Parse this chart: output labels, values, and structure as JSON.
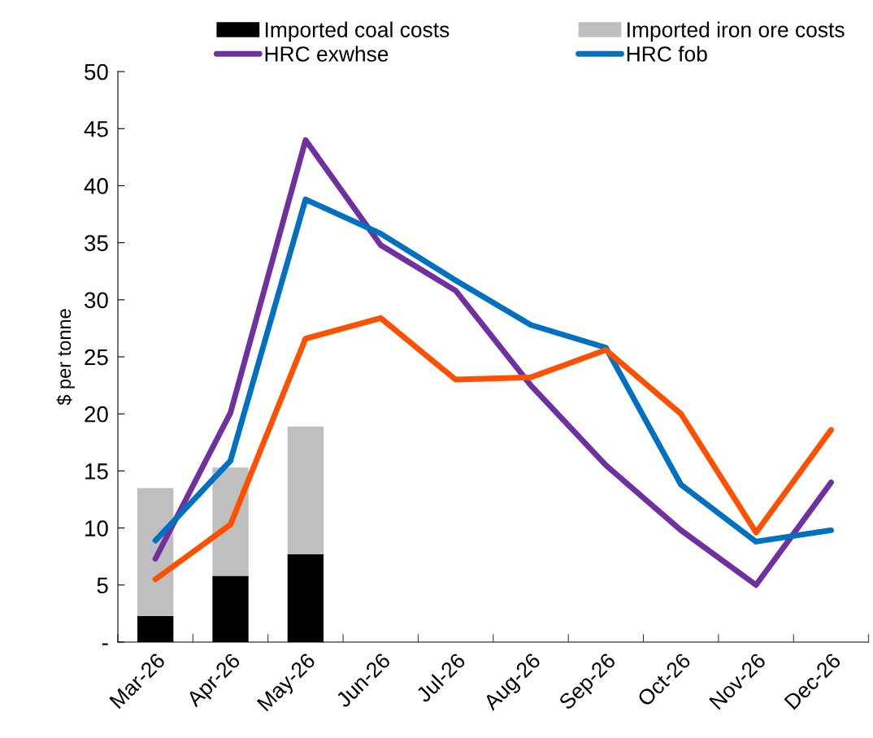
{
  "chart_data": {
    "type": "line",
    "ylabel": "$ per tonne",
    "categories": [
      "Mar-26",
      "Apr-26",
      "May-26",
      "Jun-26",
      "Jul-26",
      "Aug-26",
      "Sep-26",
      "Oct-26",
      "Nov-26",
      "Dec-26"
    ],
    "stacked": true,
    "legend": "top",
    "grid": false,
    "ylim": [
      0,
      50
    ],
    "yticks": [
      {
        "value": 0,
        "label": "-"
      },
      5,
      10,
      15,
      20,
      25,
      30,
      35,
      40,
      45,
      50
    ],
    "series": [
      {
        "name": "Imported coal costs",
        "type": "bar",
        "color": "#000000",
        "values": [
          2.3,
          5.8,
          7.7,
          null,
          null,
          null,
          null,
          null,
          null,
          null
        ]
      },
      {
        "name": "Imported iron ore costs",
        "type": "bar",
        "color": "#bfbfbf",
        "values": [
          11.2,
          9.5,
          11.2,
          null,
          null,
          null,
          null,
          null,
          null,
          null
        ]
      },
      {
        "name": "HRC exwhse",
        "type": "line",
        "color": "#7030a0",
        "values": [
          7.3,
          20.1,
          44.0,
          34.8,
          30.8,
          22.5,
          15.5,
          9.8,
          5.0,
          14.0
        ]
      },
      {
        "name": "HRC fob",
        "type": "line",
        "color": "#0070c0",
        "values": [
          8.9,
          15.9,
          38.8,
          35.8,
          31.7,
          27.8,
          25.8,
          13.8,
          8.8,
          9.8
        ]
      },
      {
        "color": "#ff5000",
        "values": [
          5.5,
          10.3,
          26.6,
          28.4,
          23.0,
          23.2,
          25.6,
          20.0,
          9.6,
          18.6
        ]
      }
    ]
  }
}
